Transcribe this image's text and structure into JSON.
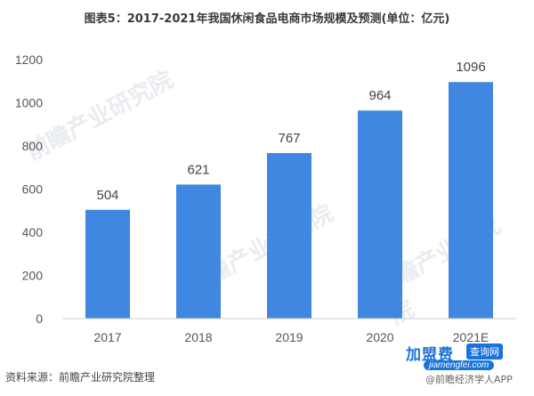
{
  "chart_data": {
    "type": "bar",
    "title": "图表5：2017-2021年我国休闲食品电商市场规模及预测(单位：亿元)",
    "categories": [
      "2017",
      "2018",
      "2019",
      "2020",
      "2021E"
    ],
    "values": [
      504,
      621,
      767,
      964,
      1096
    ],
    "data_labels": [
      "504",
      "621",
      "767",
      "964",
      "1096"
    ],
    "y_ticks": [
      0,
      200,
      400,
      600,
      800,
      1000,
      1200
    ],
    "ylim": [
      0,
      1200
    ],
    "grid": false,
    "legend": "none",
    "bar_color": "#3f87e0"
  },
  "source": "资料来源：前瞻产业研究院整理",
  "watermarks": {
    "text": "前瞻产业研究院",
    "app": "@前瞻经济学人APP",
    "badge_main": "加盟费",
    "badge_tag": "查询网",
    "badge_url": "jiamengfei.com"
  }
}
